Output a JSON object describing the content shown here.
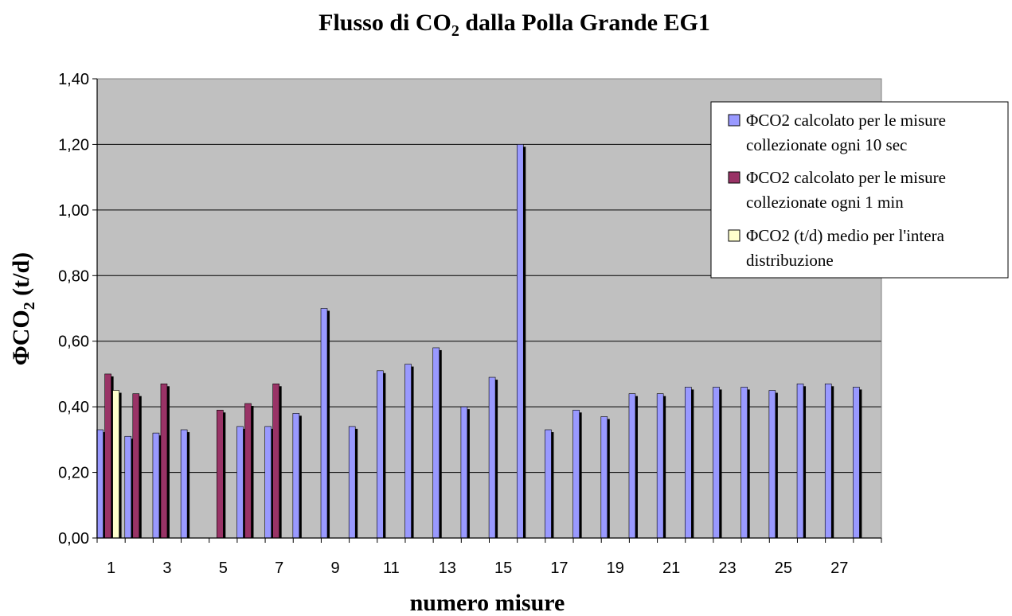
{
  "chart_data": {
    "type": "bar",
    "title": {
      "main": "Flusso di CO",
      "sub": "2",
      "rest": " dalla Polla Grande EG1"
    },
    "xlabel": "numero misure",
    "ylabel": {
      "main": "ΦCO",
      "sub": "2",
      "rest": " (t/d)"
    },
    "ylim": [
      0,
      1.4
    ],
    "yticks": [
      "0,00",
      "0,20",
      "0,40",
      "0,60",
      "0,80",
      "1,00",
      "1,20",
      "1,40"
    ],
    "ytick_values": [
      0,
      0.2,
      0.4,
      0.6,
      0.8,
      1.0,
      1.2,
      1.4
    ],
    "categories": [
      "1",
      "2",
      "3",
      "4",
      "5",
      "6",
      "7",
      "8",
      "9",
      "10",
      "11",
      "12",
      "13",
      "14",
      "15",
      "16",
      "17",
      "18",
      "19",
      "20",
      "21",
      "22",
      "23",
      "24",
      "25",
      "26",
      "27",
      "28"
    ],
    "xtick_labels": [
      "1",
      "",
      "3",
      "",
      "5",
      "",
      "7",
      "",
      "9",
      "",
      "11",
      "",
      "13",
      "",
      "15",
      "",
      "17",
      "",
      "19",
      "",
      "21",
      "",
      "23",
      "",
      "25",
      "",
      "27",
      ""
    ],
    "grid": true,
    "legend_position": "top-right",
    "series": [
      {
        "name": "ΦCO2 calcolato per le misure collezionate ogni 10 sec",
        "color": "#9999ff",
        "values": [
          0.33,
          0.31,
          0.32,
          0.33,
          null,
          0.34,
          0.34,
          0.38,
          0.7,
          0.34,
          0.51,
          0.53,
          0.58,
          0.4,
          0.49,
          1.2,
          0.33,
          0.39,
          0.37,
          0.44,
          0.44,
          0.46,
          0.46,
          0.46,
          0.45,
          0.47,
          0.47,
          0.46
        ]
      },
      {
        "name": "ΦCO2 calcolato per le misure collezionate ogni 1 min",
        "color": "#993366",
        "values": [
          0.5,
          0.44,
          0.47,
          null,
          0.39,
          0.41,
          0.47,
          null,
          null,
          null,
          null,
          null,
          null,
          null,
          null,
          null,
          null,
          null,
          null,
          null,
          null,
          null,
          null,
          null,
          null,
          null,
          null,
          null
        ]
      },
      {
        "name": "ΦCO2 (t/d) medio per l'intera distribuzione",
        "color": "#ffffcc",
        "values": [
          0.45,
          null,
          null,
          null,
          null,
          null,
          null,
          null,
          null,
          null,
          null,
          null,
          null,
          null,
          null,
          null,
          null,
          null,
          null,
          null,
          null,
          null,
          null,
          null,
          null,
          null,
          null,
          null
        ]
      }
    ],
    "legend_labels": [
      [
        "ΦCO2 calcolato per le misure",
        "collezionate ogni 10 sec"
      ],
      [
        "ΦCO2 calcolato per le misure",
        "collezionate ogni 1 min"
      ],
      [
        "ΦCO2 (t/d) medio per l'intera",
        "distribuzione"
      ]
    ],
    "plot_background": "#c0c0c0"
  }
}
